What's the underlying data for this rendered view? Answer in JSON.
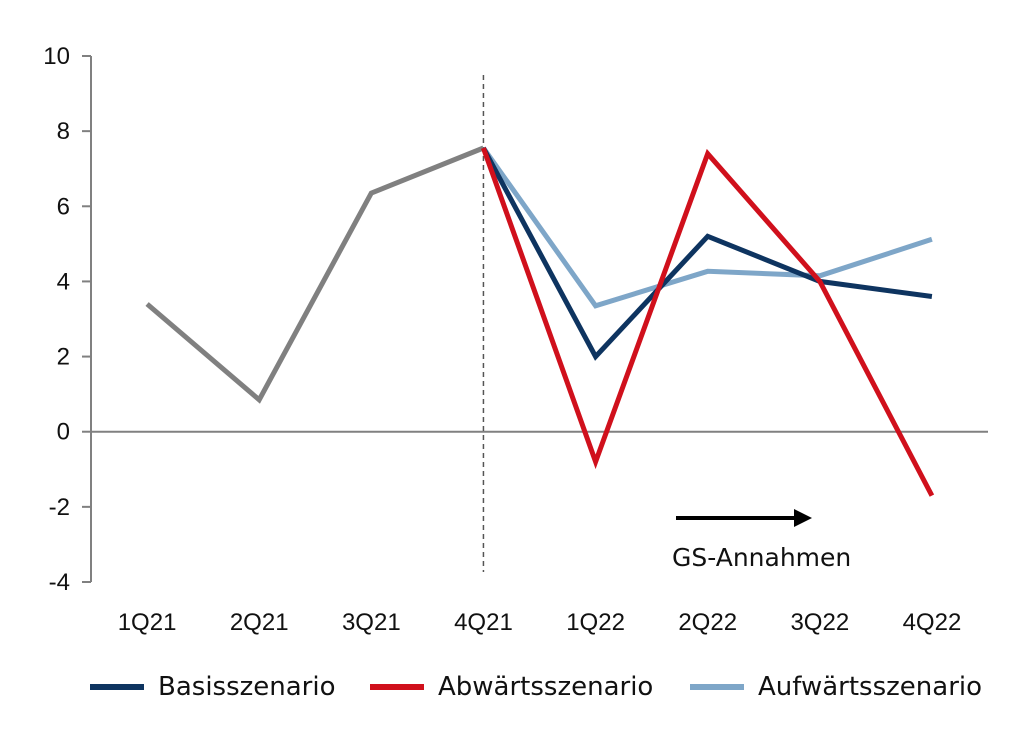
{
  "chart_data": {
    "type": "line",
    "categories": [
      "1Q21",
      "2Q21",
      "3Q21",
      "4Q21",
      "1Q22",
      "2Q22",
      "3Q22",
      "4Q22"
    ],
    "ylim": [
      -4,
      10
    ],
    "yticks": [
      10,
      8,
      6,
      4,
      2,
      0,
      -2,
      -4
    ],
    "ytick_labels": [
      "10",
      "8",
      "6",
      "4",
      "2",
      "0",
      "-2",
      "-4"
    ],
    "historical": {
      "color": "#808080",
      "values": [
        3.4,
        0.85,
        6.35,
        7.55,
        null,
        null,
        null,
        null
      ]
    },
    "series": [
      {
        "name": "Basisszenario",
        "color": "#0e3460",
        "values": [
          null,
          null,
          null,
          7.55,
          2.0,
          5.2,
          4.0,
          3.6
        ]
      },
      {
        "name": "Abwärtsszenario",
        "color": "#d0101c",
        "values": [
          null,
          null,
          null,
          7.55,
          -0.8,
          7.4,
          4.0,
          -1.7
        ]
      },
      {
        "name": "Aufwärtsszenario",
        "color": "#7ea6c8",
        "values": [
          null,
          null,
          null,
          7.55,
          3.35,
          4.27,
          4.15,
          5.12
        ]
      }
    ],
    "annotation": {
      "text": "GS-Annahmen",
      "from_category": "2Q22",
      "to_category": "3Q22"
    },
    "divider_category": "4Q21",
    "grid": false,
    "legend_position": "bottom"
  }
}
